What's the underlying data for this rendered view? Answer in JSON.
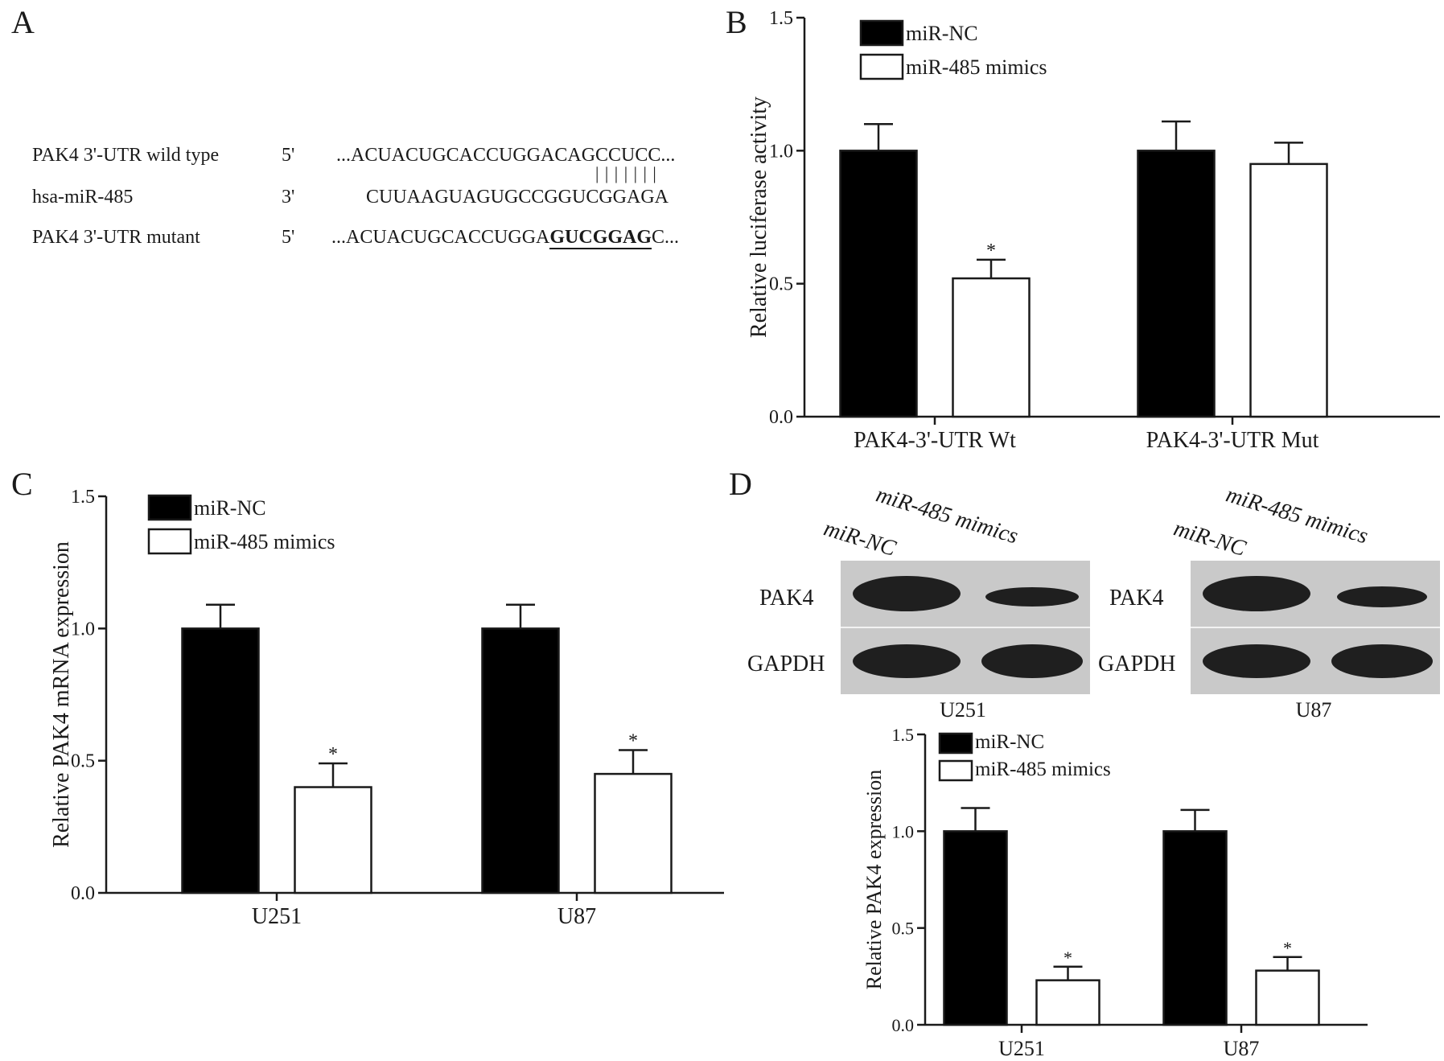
{
  "panels": {
    "a": {
      "letter": "A",
      "rows": [
        {
          "name": "PAK4 3'-UTR wild type",
          "end": "5'",
          "seq": "...ACUACUGCACCUGGACAGCCUCC..."
        },
        {
          "name": "hsa-miR-485",
          "end": "3'",
          "seq": "CUUAAGUAGUGCCGGUCGGAGA"
        },
        {
          "name": "PAK4 3'-UTR mutant",
          "end": "5'",
          "seq_prefix": "...ACUACUGCACCUGGA",
          "seq_mut": "GUCGGAG",
          "seq_suffix": "C..."
        }
      ],
      "pairing_marks": "| | | | | | |"
    },
    "b": {
      "letter": "B"
    },
    "c": {
      "letter": "C"
    },
    "d": {
      "letter": "D",
      "blots": [
        {
          "cell": "U251",
          "lanes": [
            "miR-NC",
            "miR-485 mimics"
          ],
          "rows": [
            "PAK4",
            "GAPDH"
          ]
        },
        {
          "cell": "U87",
          "lanes": [
            "miR-NC",
            "miR-485 mimics"
          ],
          "rows": [
            "PAK4",
            "GAPDH"
          ]
        }
      ]
    }
  },
  "colors": {
    "nc": "#000000",
    "mimics": "#ffffff",
    "blot_bg": "#c9c9c9",
    "band": "#101010"
  },
  "chart_data": [
    {
      "panel": "B",
      "type": "bar",
      "categories": [
        "PAK4-3'-UTR Wt",
        "PAK4-3'-UTR Mut"
      ],
      "series": [
        {
          "name": "miR-NC",
          "values": [
            1.0,
            1.0
          ],
          "errors": [
            0.1,
            0.11
          ]
        },
        {
          "name": "miR-485 mimics",
          "values": [
            0.52,
            0.95
          ],
          "errors": [
            0.07,
            0.08
          ],
          "significant": [
            true,
            false
          ]
        }
      ],
      "ylabel": "Relative luciferase activity",
      "ylim": [
        0,
        1.5
      ],
      "yticks": [
        "0.0",
        "0.5",
        "1.0",
        "1.5"
      ],
      "legend": "top-left",
      "significance_mark": "*"
    },
    {
      "panel": "C",
      "type": "bar",
      "categories": [
        "U251",
        "U87"
      ],
      "series": [
        {
          "name": "miR-NC",
          "values": [
            1.0,
            1.0
          ],
          "errors": [
            0.09,
            0.09
          ]
        },
        {
          "name": "miR-485 mimics",
          "values": [
            0.4,
            0.45
          ],
          "errors": [
            0.09,
            0.09
          ],
          "significant": [
            true,
            true
          ]
        }
      ],
      "ylabel": "Relative PAK4 mRNA expression",
      "ylim": [
        0,
        1.5
      ],
      "yticks": [
        "0.0",
        "0.5",
        "1.0",
        "1.5"
      ],
      "legend": "top-left",
      "significance_mark": "*"
    },
    {
      "panel": "D",
      "type": "bar",
      "categories": [
        "U251",
        "U87"
      ],
      "series": [
        {
          "name": "miR-NC",
          "values": [
            1.0,
            1.0
          ],
          "errors": [
            0.12,
            0.11
          ]
        },
        {
          "name": "miR-485 mimics",
          "values": [
            0.23,
            0.28
          ],
          "errors": [
            0.07,
            0.07
          ],
          "significant": [
            true,
            true
          ]
        }
      ],
      "ylabel": "Relative PAK4 expression",
      "ylim": [
        0,
        1.5
      ],
      "yticks": [
        "0.0",
        "0.5",
        "1.0",
        "1.5"
      ],
      "legend": "top-left",
      "significance_mark": "*"
    }
  ]
}
